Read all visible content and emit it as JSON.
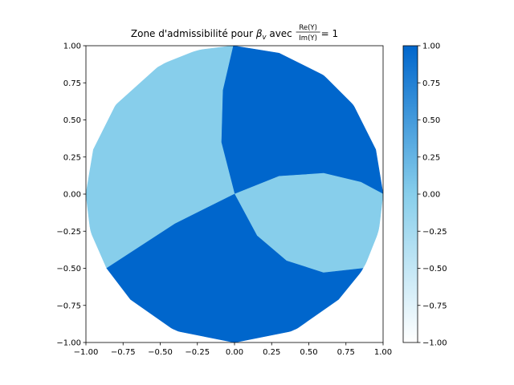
{
  "chart_data": {
    "type": "region-plot",
    "title": {
      "prefix": "Zone d'admissibilité pour ",
      "beta": "β",
      "beta_sub": "v",
      "mid": " avec ",
      "frac_num": "Re(Y)",
      "frac_den": "Im(Y)",
      "suffix": " = 1"
    },
    "xlim": [
      -1.0,
      1.0
    ],
    "ylim": [
      -1.0,
      1.0
    ],
    "xticks": [
      "−1.00",
      "−0.75",
      "−0.50",
      "−0.25",
      "0.00",
      "0.25",
      "0.50",
      "0.75",
      "1.00"
    ],
    "yticks": [
      "−1.00",
      "−0.75",
      "−0.50",
      "−0.25",
      "0.00",
      "0.25",
      "0.50",
      "0.75",
      "1.00"
    ],
    "xtick_values": [
      -1.0,
      -0.75,
      -0.5,
      -0.25,
      0.0,
      0.25,
      0.5,
      0.75,
      1.0
    ],
    "ytick_values": [
      -1.0,
      -0.75,
      -0.5,
      -0.25,
      0.0,
      0.25,
      0.5,
      0.75,
      1.0
    ],
    "domain": "unit disk",
    "regions": [
      {
        "name": "upper-right",
        "value": 1,
        "color": "#0066cc",
        "boundary_points": [
          [
            -0.01,
            1.0
          ],
          [
            -0.08,
            0.7
          ],
          [
            -0.09,
            0.35
          ],
          [
            0.0,
            0.0
          ],
          [
            0.3,
            0.12
          ],
          [
            0.6,
            0.14
          ],
          [
            0.85,
            0.08
          ],
          [
            1.0,
            0.0
          ],
          [
            0.95,
            0.3
          ],
          [
            0.8,
            0.6
          ],
          [
            0.6,
            0.8
          ],
          [
            0.3,
            0.95
          ]
        ]
      },
      {
        "name": "right-wedge",
        "value": 0,
        "color": "#87ceeb",
        "boundary_points": [
          [
            0.0,
            0.0
          ],
          [
            0.3,
            0.12
          ],
          [
            0.6,
            0.14
          ],
          [
            0.85,
            0.08
          ],
          [
            1.0,
            0.0
          ],
          [
            0.97,
            -0.25
          ],
          [
            0.87,
            -0.5
          ],
          [
            0.6,
            -0.53
          ],
          [
            0.35,
            -0.45
          ],
          [
            0.15,
            -0.28
          ]
        ]
      },
      {
        "name": "left",
        "value": 0,
        "color": "#87ceeb",
        "boundary_points": [
          [
            -0.01,
            1.0
          ],
          [
            -0.08,
            0.7
          ],
          [
            -0.09,
            0.35
          ],
          [
            0.0,
            0.0
          ],
          [
            -0.4,
            -0.2
          ],
          [
            -0.86,
            -0.5
          ],
          [
            -0.97,
            -0.25
          ],
          [
            -1.0,
            0.0
          ],
          [
            -0.95,
            0.3
          ],
          [
            -0.8,
            0.6
          ],
          [
            -0.5,
            0.87
          ],
          [
            -0.25,
            0.97
          ]
        ]
      },
      {
        "name": "bottom",
        "value": 1,
        "color": "#0066cc",
        "boundary_points": [
          [
            0.0,
            0.0
          ],
          [
            -0.4,
            -0.2
          ],
          [
            -0.86,
            -0.5
          ],
          [
            -0.7,
            -0.71
          ],
          [
            -0.4,
            -0.92
          ],
          [
            0.0,
            -1.0
          ],
          [
            0.4,
            -0.92
          ],
          [
            0.7,
            -0.71
          ],
          [
            0.87,
            -0.5
          ],
          [
            0.6,
            -0.53
          ],
          [
            0.35,
            -0.45
          ],
          [
            0.15,
            -0.28
          ]
        ]
      }
    ],
    "colorbar": {
      "min": -1.0,
      "max": 1.0,
      "colors": [
        "#ffffff",
        "#87ceeb",
        "#0066cc"
      ],
      "ticks": [
        "−1.00",
        "−0.75",
        "−0.50",
        "−0.25",
        "0.00",
        "0.25",
        "0.50",
        "0.75",
        "1.00"
      ],
      "tick_values": [
        -1.0,
        -0.75,
        -0.5,
        -0.25,
        0.0,
        0.25,
        0.5,
        0.75,
        1.0
      ]
    }
  }
}
